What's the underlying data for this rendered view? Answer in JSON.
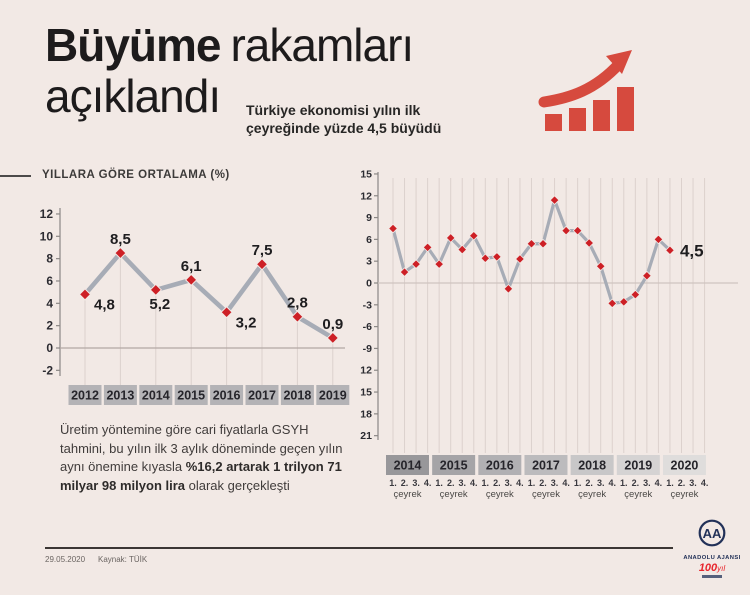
{
  "colors": {
    "background": "#f2e9e5",
    "marker_red": "#cd2026",
    "icon_red": "#d64a3e",
    "line_gray": "#a7acb6",
    "grid": "#dcd1cd",
    "zero_line": "#b3a8a4",
    "axis": "#8c8886",
    "navy": "#223158"
  },
  "header": {
    "title_bold": "Büyüme",
    "title_rest": "rakamları",
    "title_line2": "açıklandı",
    "subtitle": "Türkiye ekonomisi yılın ilk çeyreğinde yüzde 4,5 büyüdü"
  },
  "body_text": {
    "part1": "Üretim yöntemine göre cari fiyatlarla GSYH tahmini, bu yılın ilk 3 aylık döneminde geçen yılın aynı önemine kıyasla ",
    "bold": "%16,2 artarak 1 trilyon 71 milyar 98 milyon lira",
    "part2": " olarak gerçekleşti"
  },
  "footer": {
    "date": "29.05.2020",
    "source": "Kaynak: TÜİK"
  },
  "logo": {
    "monogram": "AA",
    "name": "ANADOLU AJANSI",
    "century_number": "100",
    "century_suffix": "yıl"
  },
  "chart_data": [
    {
      "type": "line",
      "title": "YILLARA GÖRE ORTALAMA (%)",
      "categories": [
        "2012",
        "2013",
        "2014",
        "2015",
        "2016",
        "2017",
        "2018",
        "2019"
      ],
      "values": [
        4.8,
        8.5,
        5.2,
        6.1,
        3.2,
        7.5,
        2.8,
        0.9
      ],
      "point_labels": [
        "4,8",
        "8,5",
        "5,2",
        "6,1",
        "3,2",
        "7,5",
        "2,8",
        "0,9"
      ],
      "label_pos": [
        "below-right",
        "above",
        "below",
        "above",
        "below-right",
        "above",
        "above",
        "above"
      ],
      "yticks": [
        12,
        10,
        8,
        6,
        4,
        2,
        0,
        -2
      ],
      "ylim": [
        -2,
        12
      ],
      "grid": "vertical-per-point",
      "legend": "none",
      "year_box_color": "#b4b3b6"
    },
    {
      "type": "line",
      "title": "",
      "years": [
        "2014",
        "2015",
        "2016",
        "2017",
        "2018",
        "2019",
        "2020"
      ],
      "quarter_numbers": [
        "1.",
        "2.",
        "3.",
        "4."
      ],
      "quarter_word": "çeyrek",
      "x": [
        "2014 Q1",
        "2014 Q2",
        "2014 Q3",
        "2014 Q4",
        "2015 Q1",
        "2015 Q2",
        "2015 Q3",
        "2015 Q4",
        "2016 Q1",
        "2016 Q2",
        "2016 Q3",
        "2016 Q4",
        "2017 Q1",
        "2017 Q2",
        "2017 Q3",
        "2017 Q4",
        "2018 Q1",
        "2018 Q2",
        "2018 Q3",
        "2018 Q4",
        "2019 Q1",
        "2019 Q2",
        "2019 Q3",
        "2019 Q4",
        "2020 Q1"
      ],
      "values": [
        7.5,
        1.5,
        2.6,
        4.9,
        2.6,
        6.2,
        4.6,
        6.5,
        3.4,
        3.6,
        -0.8,
        3.3,
        5.4,
        5.4,
        11.4,
        7.2,
        7.2,
        5.5,
        2.3,
        -2.8,
        -2.6,
        -1.6,
        1.0,
        6.0,
        4.5
      ],
      "latest_label": "4,5",
      "yticks": [
        15,
        12,
        9,
        6,
        3,
        0,
        -3,
        -6,
        -9,
        -12,
        -15,
        -18,
        -21
      ],
      "ylim": [
        -21,
        15
      ],
      "y_prefix": "%",
      "grid": "vertical-per-quarter",
      "legend": "none",
      "year_box_colors": [
        "#98979a",
        "#a5a4a7",
        "#b1b0b3",
        "#bcbbbd",
        "#c8c7c8",
        "#d5d3d3",
        "#dfdddc"
      ]
    }
  ]
}
